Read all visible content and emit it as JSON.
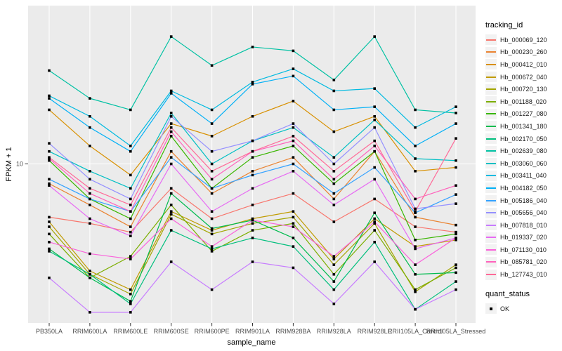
{
  "figure": {
    "y_axis": {
      "title": "FPKM + 1",
      "tick_label": "10"
    },
    "x_axis": {
      "title": "sample_name"
    },
    "legend_tracking": {
      "title": "tracking_id"
    },
    "legend_quant": {
      "title": "quant_status",
      "items": [
        {
          "label": "OK",
          "glyph": "black-square"
        }
      ]
    },
    "colors": {
      "panel_bg": "#EBEBEB",
      "gridline": "#FFFFFF",
      "tick_mark": "#333333",
      "tick_text": "#4D4D4D",
      "axis_title_text": "#000000",
      "legend_key_bg": "#F2F2F2",
      "point": "#000000"
    }
  },
  "chart_data": {
    "type": "line",
    "title": "",
    "xlabel": "sample_name",
    "ylabel": "FPKM + 1",
    "y_scale": "log10",
    "ylim": [
      0.99,
      101
    ],
    "y_major_gridlines": [
      10
    ],
    "y_tick_labels": [
      "10"
    ],
    "grid": "major-only, gray panel with white gridlines",
    "legend_position": "right",
    "point_marker": "small black square (quant_status = OK)",
    "categories": [
      "PB350LA",
      "RRIM600LA",
      "RRIM600LE",
      "RRIM600SE",
      "RRIM600PE",
      "RRIM901LA",
      "RRIM928BA",
      "RRIM928LA",
      "RRIM928LE",
      "RRII105LA_Control",
      "RRII105LA_Stressed"
    ],
    "series": [
      {
        "name": "Hb_000069_120",
        "color": "#F8766D",
        "values": [
          4.6,
          4.2,
          3.7,
          7.0,
          4.5,
          5.5,
          6.5,
          4.3,
          6.0,
          4.0,
          3.7
        ]
      },
      {
        "name": "Hb_000230_260",
        "color": "#EA8331",
        "values": [
          7.5,
          5.5,
          4.0,
          12,
          6.5,
          9.0,
          11,
          6.0,
          12,
          4.6,
          4.1
        ]
      },
      {
        "name": "Hb_000412_010",
        "color": "#D89000",
        "values": [
          22,
          13,
          8.5,
          18,
          15,
          20,
          25,
          16,
          20,
          9.0,
          9.5
        ]
      },
      {
        "name": "Hb_000672_040",
        "color": "#C09B00",
        "values": [
          4.3,
          2.1,
          1.6,
          5.0,
          3.8,
          4.5,
          5.0,
          2.5,
          4.5,
          3.0,
          3.3
        ]
      },
      {
        "name": "Hb_000720_130",
        "color": "#A3A500",
        "values": [
          4.0,
          2.0,
          1.5,
          4.8,
          3.6,
          4.2,
          4.6,
          2.3,
          4.2,
          1.55,
          2.3
        ]
      },
      {
        "name": "Hb_001188_020",
        "color": "#7CAE00",
        "values": [
          3.6,
          1.9,
          2.6,
          5.5,
          2.8,
          3.8,
          4.2,
          2.0,
          3.8,
          1.6,
          2.2
        ]
      },
      {
        "name": "Hb_001227_080",
        "color": "#39B600",
        "values": [
          10.5,
          6.0,
          4.5,
          15,
          7.0,
          11,
          13,
          7.5,
          12,
          3.3,
          3.6
        ]
      },
      {
        "name": "Hb_001341_180",
        "color": "#00BB4E",
        "values": [
          2.9,
          1.9,
          1.35,
          6.5,
          3.9,
          4.4,
          3.4,
          1.8,
          4.9,
          2.0,
          2.05
        ]
      },
      {
        "name": "Hb_002170_050",
        "color": "#00BF7D",
        "values": [
          2.8,
          2.0,
          1.3,
          3.8,
          2.9,
          3.4,
          3.0,
          1.6,
          3.2,
          1.2,
          1.8
        ]
      },
      {
        "name": "Hb_002639_080",
        "color": "#00C1A3",
        "values": [
          39,
          26,
          22,
          64,
          42,
          55,
          52,
          34,
          64,
          22,
          21
        ]
      },
      {
        "name": "Hb_003060_060",
        "color": "#00BFC4",
        "values": [
          12,
          9.0,
          7.0,
          21,
          10,
          14,
          17,
          11,
          19,
          10.8,
          10.5
        ]
      },
      {
        "name": "Hb_003411_040",
        "color": "#00BAE0",
        "values": [
          27,
          20,
          13,
          29,
          22,
          33,
          40,
          29,
          30,
          17,
          23
        ]
      },
      {
        "name": "Hb_004182_050",
        "color": "#00B0F6",
        "values": [
          26,
          17,
          12,
          28,
          18,
          32,
          36,
          22,
          23,
          13,
          18
        ]
      },
      {
        "name": "Hb_005186_040",
        "color": "#35A2FF",
        "values": [
          8.0,
          6.0,
          5.0,
          11,
          7.0,
          8.5,
          10,
          6.5,
          9.5,
          4.9,
          6.4
        ]
      },
      {
        "name": "Hb_005656_040",
        "color": "#9590FF",
        "values": [
          13.5,
          8.0,
          6.0,
          20,
          12,
          14,
          18,
          10,
          17,
          5.2,
          5.6
        ]
      },
      {
        "name": "Hb_007818_010",
        "color": "#C77CFF",
        "values": [
          1.9,
          1.15,
          1.15,
          2.4,
          1.6,
          2.4,
          2.2,
          1.3,
          2.4,
          1.2,
          1.6
        ]
      },
      {
        "name": "Hb_019337_020",
        "color": "#E76BF3",
        "values": [
          7.3,
          4.5,
          3.5,
          10,
          5.0,
          7.0,
          9.0,
          5.5,
          8.0,
          2.9,
          3.4
        ]
      },
      {
        "name": "Hb_071130_010",
        "color": "#FA62DB",
        "values": [
          3.2,
          2.7,
          2.5,
          4.5,
          3.0,
          4.4,
          4.0,
          2.6,
          4.3,
          2.3,
          3.4
        ]
      },
      {
        "name": "Hb_085781_020",
        "color": "#FF62BC",
        "values": [
          10.8,
          6.5,
          5.0,
          16,
          8.0,
          12,
          14,
          8.0,
          13,
          6.0,
          7.3
        ]
      },
      {
        "name": "Hb_127743_010",
        "color": "#FF6A98",
        "values": [
          11,
          7.0,
          5.5,
          17,
          9.0,
          12,
          15,
          9.0,
          14,
          5.0,
          14.5
        ]
      }
    ],
    "quant_status_legend": {
      "title": "quant_status",
      "entries": [
        "OK"
      ]
    }
  }
}
